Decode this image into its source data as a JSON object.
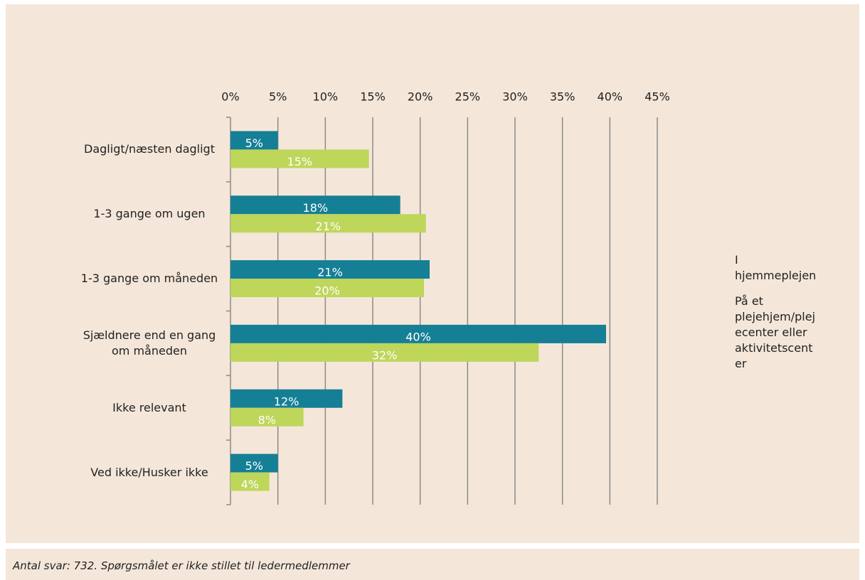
{
  "chart_data": {
    "type": "bar",
    "orientation": "horizontal",
    "categories": [
      "Dagligt/næsten dagligt",
      "1-3 gange om ugen",
      "1-3 gange om måneden",
      "Sjældnere end en gang om måneden",
      "Ikke relevant",
      "Ved ikke/Husker ikke"
    ],
    "series": [
      {
        "name": "I hjemmeplejen",
        "color": "#157f96",
        "values": [
          5,
          17.9,
          21,
          39.6,
          11.8,
          5
        ],
        "value_labels": [
          "5%",
          "18%",
          "21%",
          "40%",
          "12%",
          "5%"
        ]
      },
      {
        "name": "På et plejehjem/plejecenter eller aktivitetscenter",
        "color": "#bed65a",
        "values": [
          14.6,
          20.6,
          20.4,
          32.5,
          7.7,
          4.1
        ],
        "value_labels": [
          "15%",
          "21%",
          "20%",
          "32%",
          "8%",
          "4%"
        ]
      }
    ],
    "xlim": [
      0,
      45
    ],
    "xticks": [
      {
        "value": 0,
        "label": "0%"
      },
      {
        "value": 5,
        "label": "5%"
      },
      {
        "value": 10,
        "label": "10%"
      },
      {
        "value": 15,
        "label": "15%"
      },
      {
        "value": 20,
        "label": "20%"
      },
      {
        "value": 25,
        "label": "25%"
      },
      {
        "value": 30,
        "label": "30%"
      },
      {
        "value": 35,
        "label": "35%"
      },
      {
        "value": 40,
        "label": "40%"
      },
      {
        "value": 45,
        "label": "45%"
      }
    ],
    "grid": true,
    "legend": "right",
    "note": "Antal svar: 732.  Spørgsmålet er ikke stillet til ledermedlemmer"
  }
}
